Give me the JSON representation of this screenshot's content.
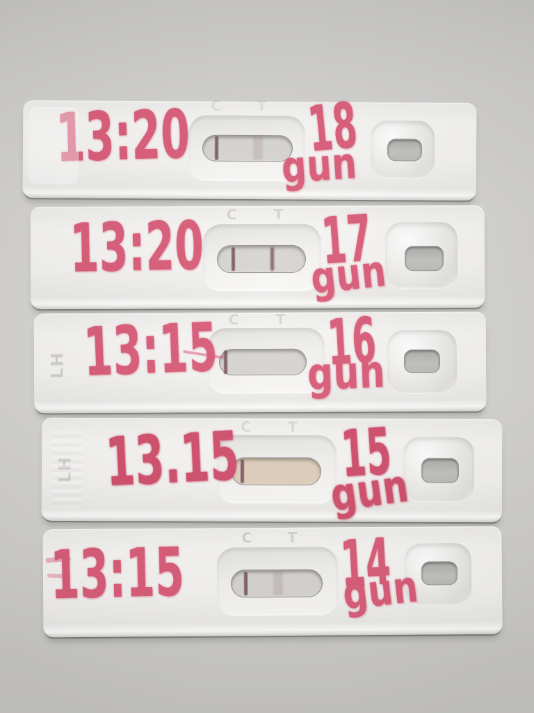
{
  "scene": {
    "type": "photograph",
    "description": "Five white LH ovulation test cassettes laid in a column on a grey surface, each annotated by hand in pink marker with a test time and cycle day number",
    "background_color": "#cdccca",
    "cassette_color": "#f3f2f0",
    "marker_color": "#d95b78",
    "result_line_color": "#6e4456",
    "window_color": "#d6d4d0",
    "wet_window_color": "#decfbb"
  },
  "labels": {
    "control": "C",
    "test": "T",
    "brand_embossing": "LH"
  },
  "strips": [
    {
      "time": "13:20",
      "day": "18",
      "day_unit": "gun",
      "lines": {
        "control": true,
        "test": "faint"
      }
    },
    {
      "time": "13:20",
      "day": "17",
      "day_unit": "gun",
      "lines": {
        "control": true,
        "test": "strong"
      }
    },
    {
      "time": "13:15",
      "day": "16",
      "day_unit": "gun",
      "lines": {
        "control": true,
        "test": "none"
      }
    },
    {
      "time": "13.15",
      "day": "15",
      "day_unit": "gun",
      "lines": {
        "control": true,
        "test": "none"
      }
    },
    {
      "time": "13:15",
      "day": "14",
      "day_unit": "gun",
      "lines": {
        "control": true,
        "test": "faint"
      }
    }
  ]
}
